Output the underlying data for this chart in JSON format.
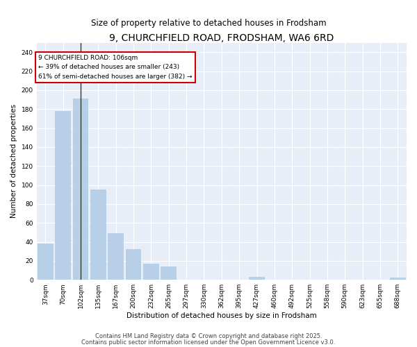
{
  "title": "9, CHURCHFIELD ROAD, FRODSHAM, WA6 6RD",
  "subtitle": "Size of property relative to detached houses in Frodsham",
  "xlabel": "Distribution of detached houses by size in Frodsham",
  "ylabel": "Number of detached properties",
  "bar_labels": [
    "37sqm",
    "70sqm",
    "102sqm",
    "135sqm",
    "167sqm",
    "200sqm",
    "232sqm",
    "265sqm",
    "297sqm",
    "330sqm",
    "362sqm",
    "395sqm",
    "427sqm",
    "460sqm",
    "492sqm",
    "525sqm",
    "558sqm",
    "590sqm",
    "623sqm",
    "655sqm",
    "688sqm"
  ],
  "bar_values": [
    38,
    178,
    191,
    95,
    49,
    32,
    17,
    14,
    0,
    0,
    0,
    0,
    3,
    0,
    0,
    0,
    0,
    0,
    0,
    0,
    2
  ],
  "bar_color_normal": "#b8cfe8",
  "bar_color_highlight": "#ccdaf0",
  "highlight_index": 2,
  "vertical_line_x": 2,
  "ylim": [
    0,
    250
  ],
  "yticks": [
    0,
    20,
    40,
    60,
    80,
    100,
    120,
    140,
    160,
    180,
    200,
    220,
    240
  ],
  "annotation_text": "9 CHURCHFIELD ROAD: 106sqm\n← 39% of detached houses are smaller (243)\n61% of semi-detached houses are larger (382) →",
  "annotation_box_color": "#ffffff",
  "annotation_box_edgecolor": "#cc0000",
  "footer_line1": "Contains HM Land Registry data © Crown copyright and database right 2025.",
  "footer_line2": "Contains public sector information licensed under the Open Government Licence v3.0.",
  "bg_color": "#ffffff",
  "plot_bg_color": "#e8eef8",
  "grid_color": "#ffffff",
  "title_fontsize": 10,
  "subtitle_fontsize": 8.5,
  "axis_label_fontsize": 7.5,
  "tick_fontsize": 6.5,
  "annotation_fontsize": 6.5,
  "footer_fontsize": 6
}
